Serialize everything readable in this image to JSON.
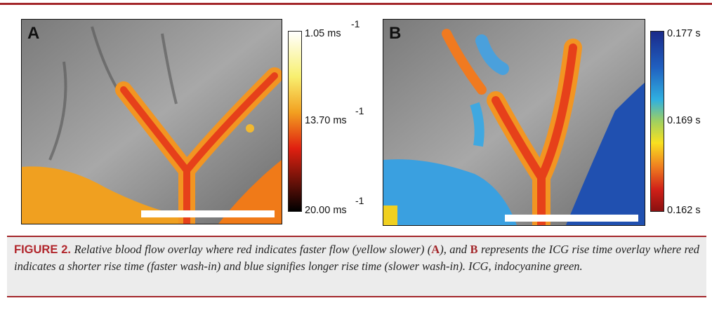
{
  "panels": [
    {
      "label": "A",
      "colorbar": [
        {
          "label": "1.05 ms",
          "exponent": "-1"
        },
        {
          "label": "13.70 ms",
          "exponent": "-1"
        },
        {
          "label": "20.00 ms",
          "exponent": "-1"
        }
      ]
    },
    {
      "label": "B",
      "colorbar": [
        {
          "label": "0.177 s"
        },
        {
          "label": "0.169 s"
        },
        {
          "label": "0.162 s"
        }
      ]
    }
  ],
  "caption": {
    "label": "FIGURE 2.",
    "text_1": "Relative blood flow overlay where red indicates faster flow (yellow slower) (",
    "ref_a": "A",
    "text_2": "), and ",
    "ref_b": "B",
    "text_3": " represents the ICG rise time overlay where red indicates a shorter rise time (faster wash-in) and blue signifies longer rise time (slower wash-in). ICG, indocyanine green."
  }
}
